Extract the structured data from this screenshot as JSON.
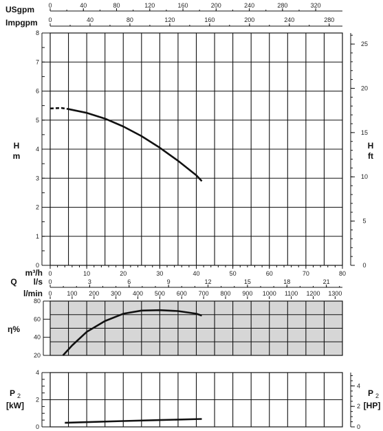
{
  "chart_data": [
    {
      "type": "line",
      "name": "head-curve",
      "xlabel": "m³/h",
      "ylabel": "H m",
      "ylabel_right": "H ft",
      "xlim": [
        0,
        80
      ],
      "ylim": [
        0,
        8
      ],
      "ylim_right": [
        0,
        26.25
      ],
      "xticks": [
        0,
        10,
        20,
        30,
        40,
        50,
        60,
        70,
        80
      ],
      "yticks": [
        0,
        1,
        2,
        3,
        4,
        5,
        6,
        7,
        8
      ],
      "yticks_right": [
        0,
        5,
        10,
        15,
        20,
        25
      ],
      "grid": true,
      "dashed_segment": {
        "x": [
          0,
          3,
          5
        ],
        "y": [
          5.4,
          5.42,
          5.38
        ]
      },
      "series": [
        {
          "values_x": [
            5,
            10,
            15,
            20,
            25,
            30,
            35,
            40,
            41.5
          ],
          "values_y": [
            5.38,
            5.25,
            5.05,
            4.78,
            4.45,
            4.05,
            3.6,
            3.1,
            2.9
          ]
        }
      ]
    },
    {
      "type": "line",
      "name": "efficiency-curve",
      "ylabel": "η%",
      "xlim": [
        0,
        80
      ],
      "ylim": [
        20,
        80
      ],
      "yticks": [
        20,
        40,
        60,
        80
      ],
      "grid": true,
      "series": [
        {
          "values_x": [
            3.5,
            6,
            10,
            15,
            20,
            25,
            30,
            35,
            40,
            41.5
          ],
          "values_y": [
            20,
            31,
            46,
            58,
            66,
            69.5,
            70,
            69,
            66,
            64
          ]
        }
      ]
    },
    {
      "type": "line",
      "name": "power-curve",
      "ylabel": "P₂ [kW]",
      "ylabel_right": "P₂ [HP]",
      "xlim": [
        0,
        80
      ],
      "ylim": [
        0,
        4
      ],
      "yticks": [
        0,
        2,
        4
      ],
      "yticks_right": [
        0,
        2,
        4
      ],
      "grid": true,
      "series": [
        {
          "values_x": [
            4,
            10,
            20,
            30,
            41.5
          ],
          "values_y": [
            0.3,
            0.35,
            0.43,
            0.5,
            0.58
          ]
        }
      ]
    }
  ],
  "top_axes": {
    "usgpm_label": "USgpm",
    "usgpm_ticks": [
      "0",
      "40",
      "80",
      "120",
      "160",
      "200",
      "240",
      "280",
      "320"
    ],
    "impgpm_label": "Impgpm",
    "impgpm_ticks": [
      "0",
      "40",
      "80",
      "120",
      "160",
      "200",
      "240",
      "280"
    ]
  },
  "bottom_axes": {
    "q_label": "Q",
    "m3h_label": "m³/h",
    "m3h_ticks": [
      "0",
      "10",
      "20",
      "30",
      "40",
      "50",
      "60",
      "70",
      "80"
    ],
    "ls_label": "l/s",
    "ls_ticks": [
      "0",
      "3",
      "6",
      "9",
      "12",
      "15",
      "18",
      "21"
    ],
    "lmin_label": "l/min",
    "lmin_ticks": [
      "0",
      "100",
      "200",
      "300",
      "400",
      "500",
      "600",
      "700",
      "800",
      "900",
      "1000",
      "1100",
      "1200",
      "1300"
    ]
  },
  "head": {
    "left_label_1": "H",
    "left_label_2": "m",
    "right_label_1": "H",
    "right_label_2": "ft",
    "left_ticks": [
      "0",
      "1",
      "2",
      "3",
      "4",
      "5",
      "6",
      "7",
      "8"
    ],
    "right_ticks": [
      "0",
      "5",
      "10",
      "15",
      "20",
      "25"
    ]
  },
  "eff": {
    "label": "η%",
    "ticks": [
      "20",
      "40",
      "60",
      "80"
    ]
  },
  "power": {
    "left_label_1": "P",
    "left_sub": "2",
    "left_label_2": "[kW]",
    "right_label_1": "P",
    "right_sub": "2",
    "right_label_2": "[HP]",
    "left_ticks": [
      "0",
      "2",
      "4"
    ],
    "right_ticks": [
      "0",
      "2",
      "4"
    ]
  },
  "colors": {
    "grid": "#111111",
    "curve": "#111111",
    "eff_fill": "#d6d6d6"
  }
}
